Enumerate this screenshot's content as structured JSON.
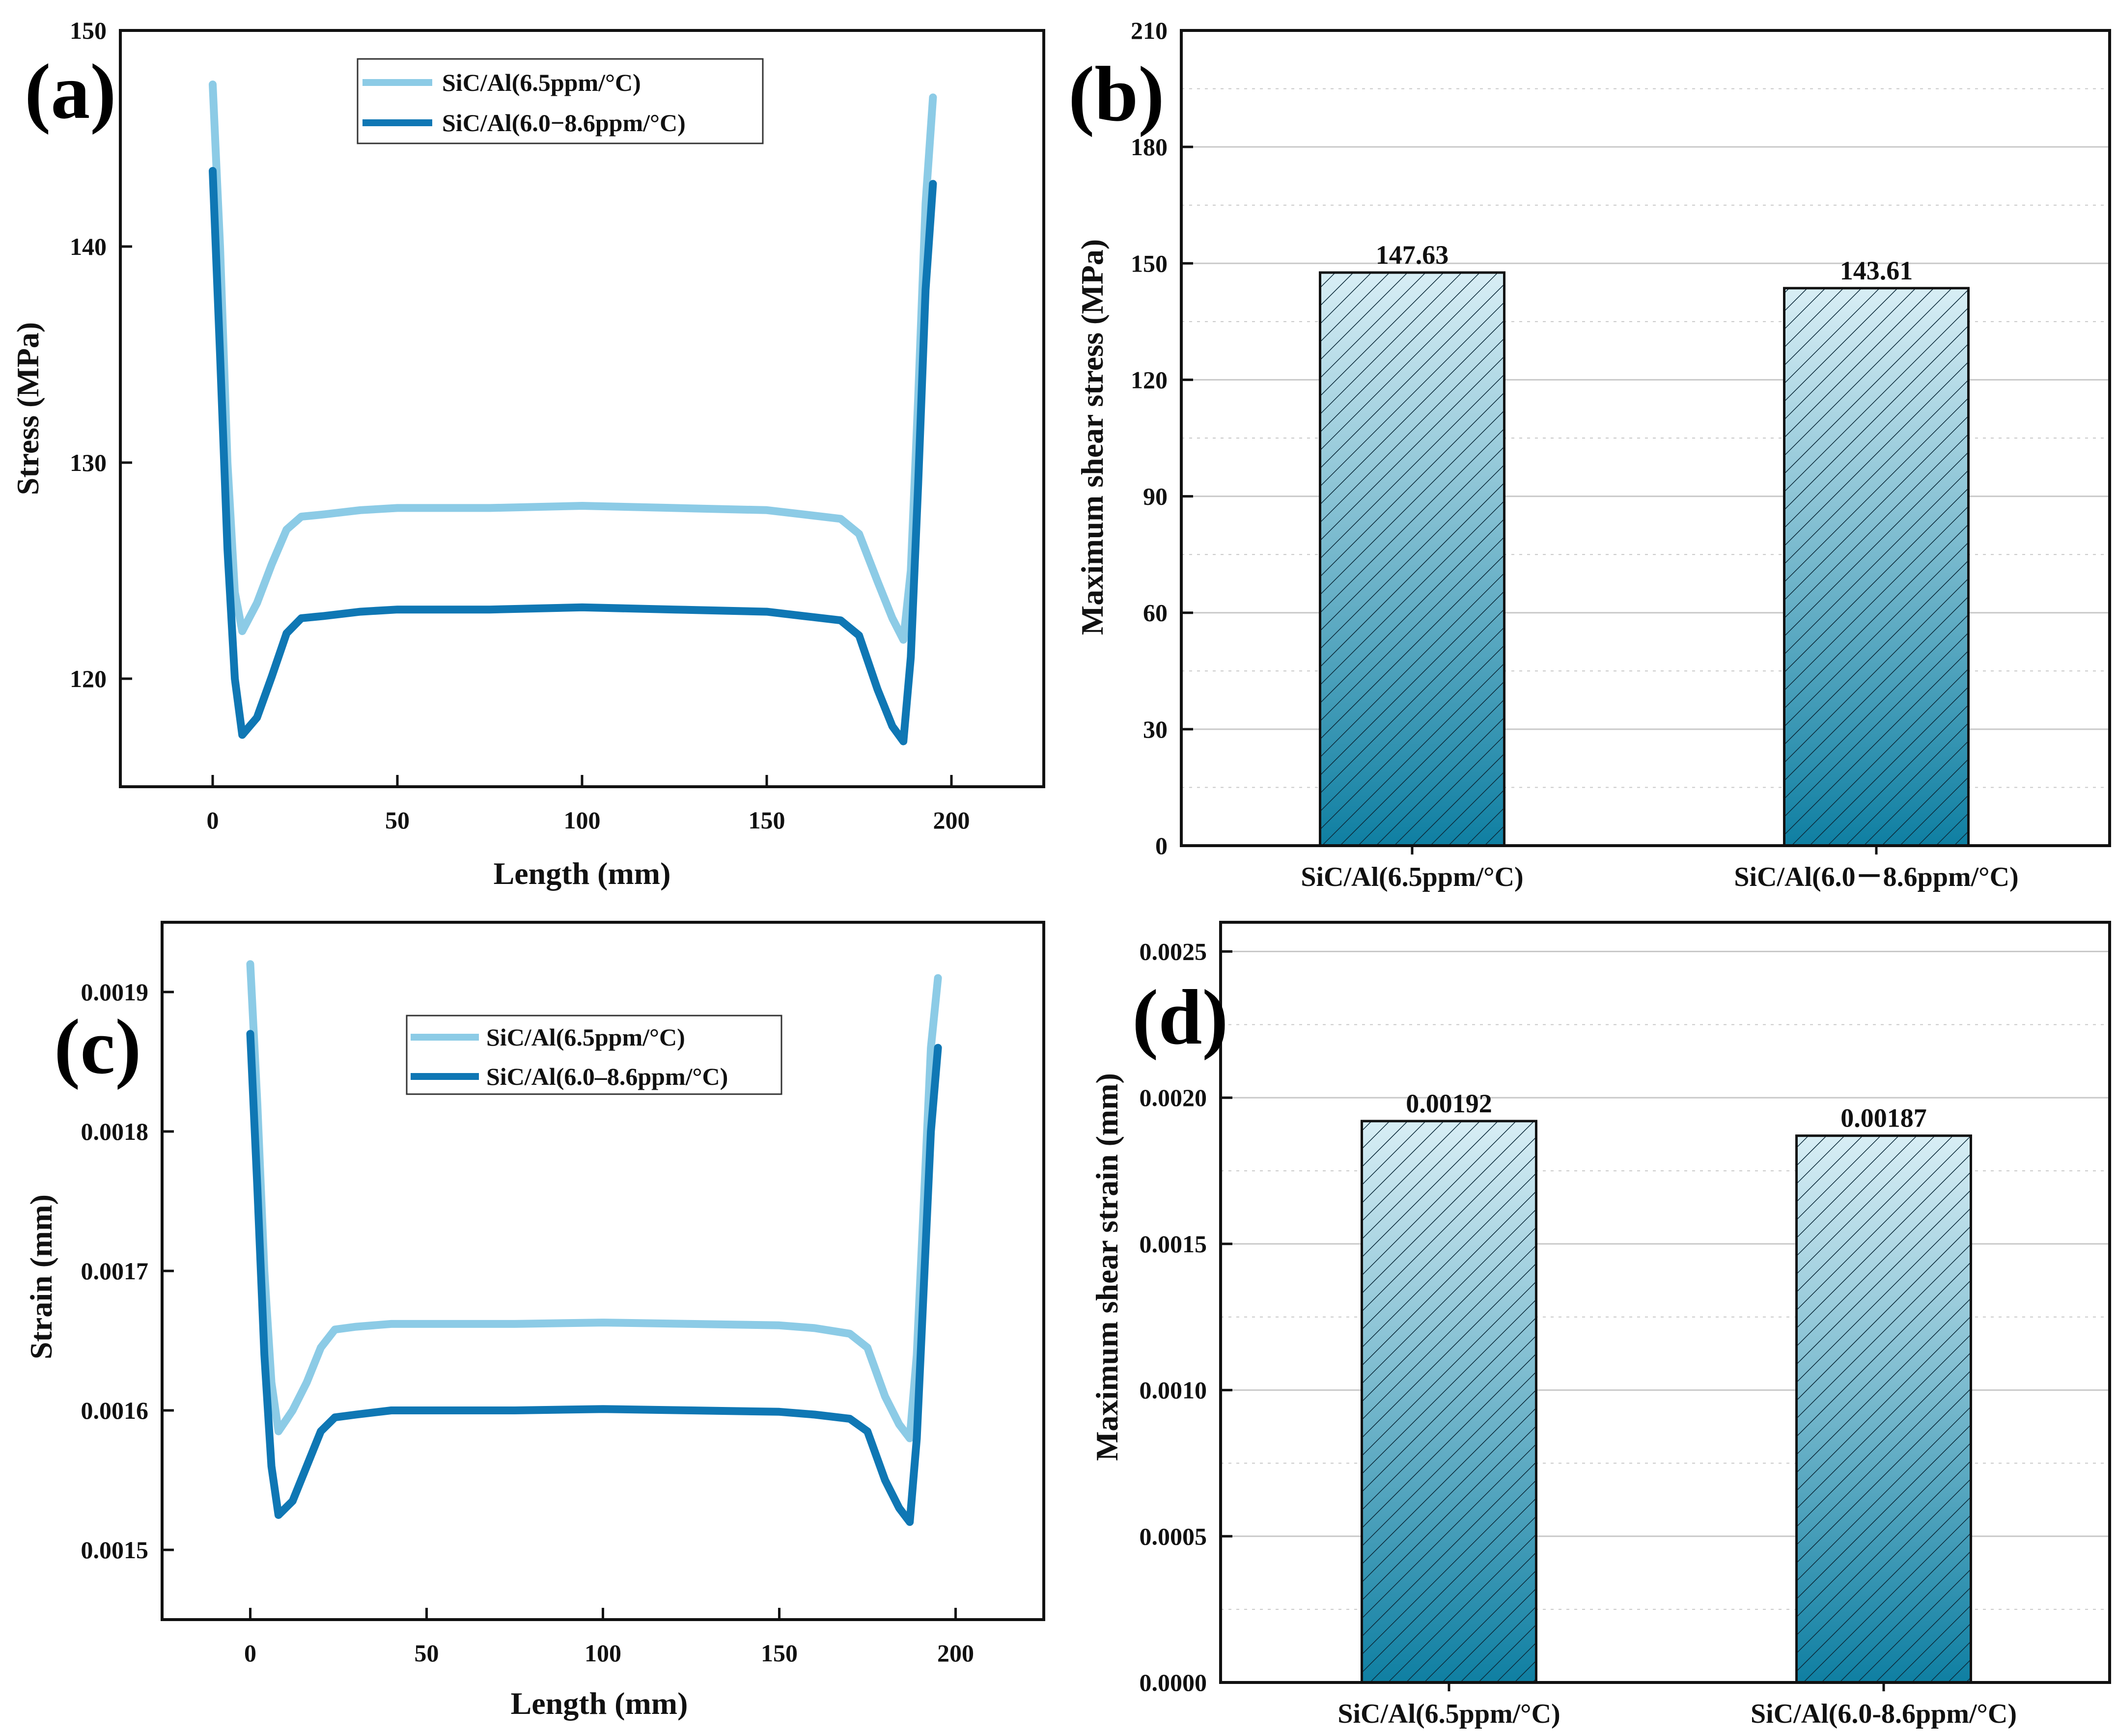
{
  "colors": {
    "light_series": "#8ccbe6",
    "dark_series": "#0f77b4",
    "bar_top": "#d8eef5",
    "bar_bottom": "#0f7fa2",
    "hatch": "#0b2a3a",
    "axis": "#111111",
    "grid": "#c9c9c9"
  },
  "chart_data": [
    {
      "panel": "(a)",
      "type": "line",
      "xlabel": "Length (mm)",
      "ylabel": "Stress (MPa)",
      "xlim": [
        -25,
        225
      ],
      "ylim": [
        115,
        150
      ],
      "xticks": [
        0,
        50,
        100,
        150,
        200
      ],
      "yticks": [
        120,
        130,
        140,
        150
      ],
      "series": [
        {
          "name": "SiC/Al(6.5ppm/°C)",
          "color": "light",
          "x": [
            0,
            2,
            4,
            6,
            8,
            12,
            16,
            20,
            24,
            30,
            40,
            50,
            75,
            100,
            125,
            150,
            160,
            170,
            175,
            180,
            184,
            187,
            189,
            191,
            193,
            195
          ],
          "y": [
            147.5,
            140,
            130,
            124,
            122.2,
            123.5,
            125.3,
            126.9,
            127.5,
            127.6,
            127.8,
            127.9,
            127.9,
            128.0,
            127.9,
            127.8,
            127.6,
            127.4,
            126.7,
            124.5,
            122.8,
            121.8,
            125,
            133,
            142,
            146.9
          ]
        },
        {
          "name": "SiC/Al(6.0−8.6ppm/°C)",
          "color": "dark",
          "x": [
            0,
            2,
            4,
            6,
            8,
            12,
            16,
            20,
            24,
            30,
            40,
            50,
            75,
            100,
            125,
            150,
            160,
            170,
            175,
            180,
            184,
            187,
            189,
            191,
            193,
            195
          ],
          "y": [
            143.5,
            135,
            126,
            120,
            117.4,
            118.2,
            120.1,
            122.1,
            122.8,
            122.9,
            123.1,
            123.2,
            123.2,
            123.3,
            123.2,
            123.1,
            122.9,
            122.7,
            122.0,
            119.5,
            117.8,
            117.1,
            121,
            129,
            138,
            142.9
          ]
        }
      ],
      "legend": [
        "SiC/Al(6.5ppm/°C)",
        "SiC/Al(6.0−8.6ppm/°C)"
      ]
    },
    {
      "panel": "(b)",
      "type": "bar",
      "ylabel": "Maximum shear stress (MPa)",
      "ylim": [
        0,
        210
      ],
      "yticks": [
        0,
        30,
        60,
        90,
        120,
        150,
        180,
        210
      ],
      "yticks_text": [
        "0",
        "30",
        "60",
        "90",
        "120",
        "150",
        "180",
        "210"
      ],
      "categories": [
        "SiC/Al(6.5ppm/°C)",
        "SiC/Al(6.0－8.6ppm/°C)"
      ],
      "values": [
        147.63,
        143.61
      ],
      "value_labels": [
        "147.63",
        "143.61"
      ]
    },
    {
      "panel": "(c)",
      "type": "line",
      "xlabel": "Length (mm)",
      "ylabel": "Strain (mm)",
      "xlim": [
        -25,
        225
      ],
      "ylim": [
        0.00145,
        0.00195
      ],
      "xticks": [
        0,
        50,
        100,
        150,
        200
      ],
      "yticks": [
        0.0015,
        0.0016,
        0.0017,
        0.0018,
        0.0019
      ],
      "yticks_text": [
        "0.0015",
        "0.0016",
        "0.0017",
        "0.0018",
        "0.0019"
      ],
      "series": [
        {
          "name": "SiC/Al(6.5ppm/°C)",
          "color": "light",
          "x": [
            0,
            2,
            4,
            6,
            8,
            12,
            16,
            20,
            24,
            30,
            40,
            50,
            75,
            100,
            125,
            150,
            160,
            170,
            175,
            180,
            184,
            187,
            189,
            191,
            193,
            195
          ],
          "y": [
            0.00192,
            0.00182,
            0.0017,
            0.00162,
            0.001585,
            0.0016,
            0.00162,
            0.001645,
            0.001658,
            0.00166,
            0.001662,
            0.001662,
            0.001662,
            0.001663,
            0.001662,
            0.001661,
            0.001659,
            0.001655,
            0.001645,
            0.00161,
            0.00159,
            0.00158,
            0.00164,
            0.00175,
            0.00186,
            0.00191
          ]
        },
        {
          "name": "SiC/Al(6.0–8.6ppm/°C)",
          "color": "dark",
          "x": [
            0,
            2,
            4,
            6,
            8,
            12,
            16,
            20,
            24,
            30,
            40,
            50,
            75,
            100,
            125,
            150,
            160,
            170,
            175,
            180,
            184,
            187,
            189,
            191,
            193,
            195
          ],
          "y": [
            0.00187,
            0.00176,
            0.00164,
            0.00156,
            0.001525,
            0.001535,
            0.00156,
            0.001585,
            0.001595,
            0.001597,
            0.0016,
            0.0016,
            0.0016,
            0.001601,
            0.0016,
            0.001599,
            0.001597,
            0.001594,
            0.001585,
            0.00155,
            0.00153,
            0.00152,
            0.00158,
            0.00169,
            0.0018,
            0.00186
          ]
        }
      ],
      "legend": [
        "SiC/Al(6.5ppm/°C)",
        "SiC/Al(6.0–8.6ppm/°C)"
      ]
    },
    {
      "panel": "(d)",
      "type": "bar",
      "ylabel": "Maximum shear strain (mm)",
      "ylim": [
        0,
        0.0026
      ],
      "yticks": [
        0,
        0.0005,
        0.001,
        0.0015,
        0.002,
        0.0025
      ],
      "yticks_text": [
        "0.0000",
        "0.0005",
        "0.0010",
        "0.0015",
        "0.0020",
        "0.0025"
      ],
      "categories": [
        "SiC/Al(6.5ppm/°C)",
        "SiC/Al(6.0-8.6ppm/°C)"
      ],
      "values": [
        0.00192,
        0.00187
      ],
      "value_labels": [
        "0.00192",
        "0.00187"
      ]
    }
  ]
}
